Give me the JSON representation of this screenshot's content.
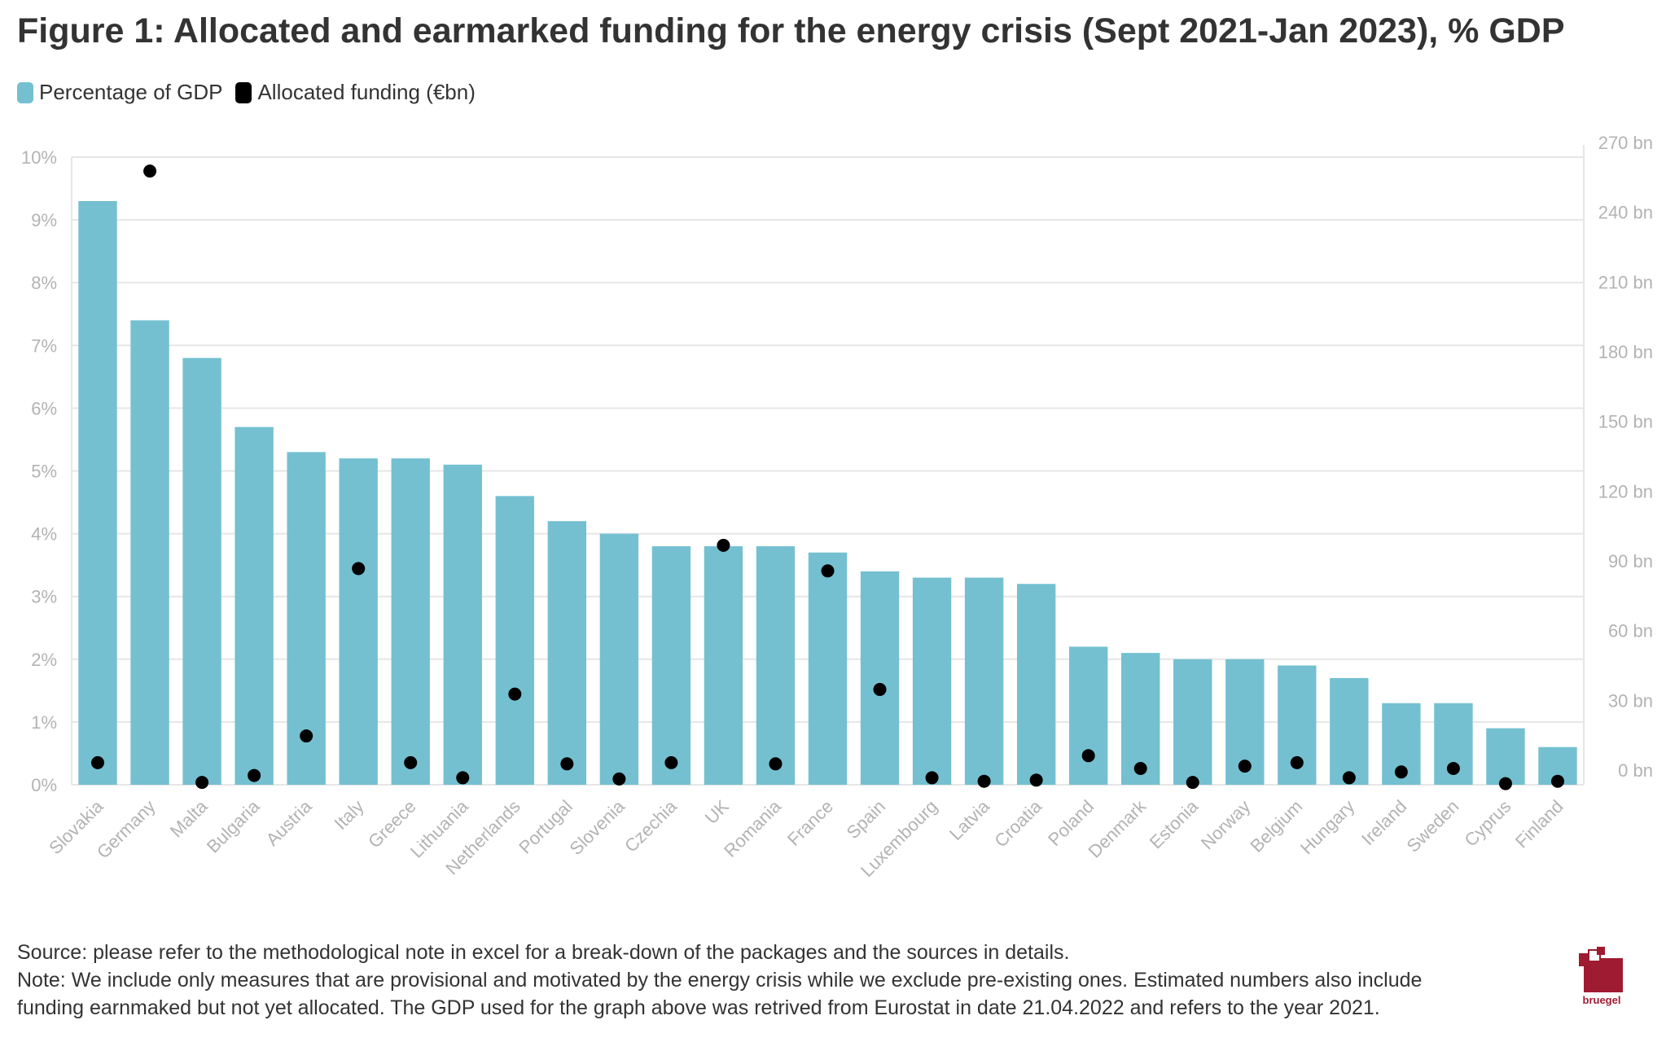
{
  "title": "Figure 1: Allocated and earmarked funding for the energy crisis (Sept 2021-Jan 2023), % GDP",
  "legend": [
    {
      "label": "Percentage of GDP",
      "color": "#74c0d1"
    },
    {
      "label": "Allocated funding (€bn)",
      "color": "#000000"
    }
  ],
  "footer": {
    "source": "Source: please refer to the methodological note in excel for a break-down of the packages and the sources in details.",
    "note_line1": "Note: We include only measures that are provisional and motivated by the energy crisis while we exclude pre-existing ones. Estimated numbers also include",
    "note_line2": "funding earnmaked but not yet allocated. The GDP used for the graph above was retrived from Eurostat in date 21.04.2022 and refers to the year 2021."
  },
  "logo": {
    "text": "bruegel",
    "color": "#9e1b32"
  },
  "chart_data": {
    "type": "bar",
    "categories": [
      "Slovakia",
      "Germany",
      "Malta",
      "Bulgaria",
      "Austria",
      "Italy",
      "Greece",
      "Lithuania",
      "Netherlands",
      "Portugal",
      "Slovenia",
      "Czechia",
      "UK",
      "Romania",
      "France",
      "Spain",
      "Luxembourg",
      "Latvia",
      "Croatia",
      "Poland",
      "Denmark",
      "Estonia",
      "Norway",
      "Belgium",
      "Hungary",
      "Ireland",
      "Sweden",
      "Cyprus",
      "Finland"
    ],
    "series": [
      {
        "name": "Percentage of GDP",
        "axis": "left",
        "color": "#74c0d1",
        "values": [
          9.3,
          7.4,
          6.8,
          5.7,
          5.3,
          5.2,
          5.2,
          5.1,
          4.6,
          4.2,
          4.0,
          3.8,
          3.8,
          3.8,
          3.7,
          3.4,
          3.3,
          3.3,
          3.2,
          2.2,
          2.1,
          2.0,
          2.0,
          1.9,
          1.7,
          1.3,
          1.3,
          0.9,
          0.6
        ]
      },
      {
        "name": "Allocated funding (€bn)",
        "axis": "right",
        "color": "#000000",
        "marker": "dot",
        "values": [
          9.5,
          264,
          1,
          4,
          21,
          93,
          9.5,
          3,
          39,
          9,
          2.5,
          9.5,
          103,
          9,
          92,
          41,
          3,
          1.5,
          2,
          12.5,
          7,
          1,
          8,
          9.5,
          3,
          5.5,
          7,
          0.5,
          1.5
        ]
      }
    ],
    "y_left": {
      "ylim": [
        0,
        10
      ],
      "ticks": [
        "0%",
        "1%",
        "2%",
        "3%",
        "4%",
        "5%",
        "6%",
        "7%",
        "8%",
        "9%",
        "10%"
      ]
    },
    "y_right": {
      "ylim": [
        0,
        270
      ],
      "ticks": [
        "0 bn",
        "30 bn",
        "60 bn",
        "90 bn",
        "120 bn",
        "150 bn",
        "180 bn",
        "210 bn",
        "240 bn",
        "270 bn"
      ]
    },
    "grid": true,
    "legend_position": "top-left"
  }
}
